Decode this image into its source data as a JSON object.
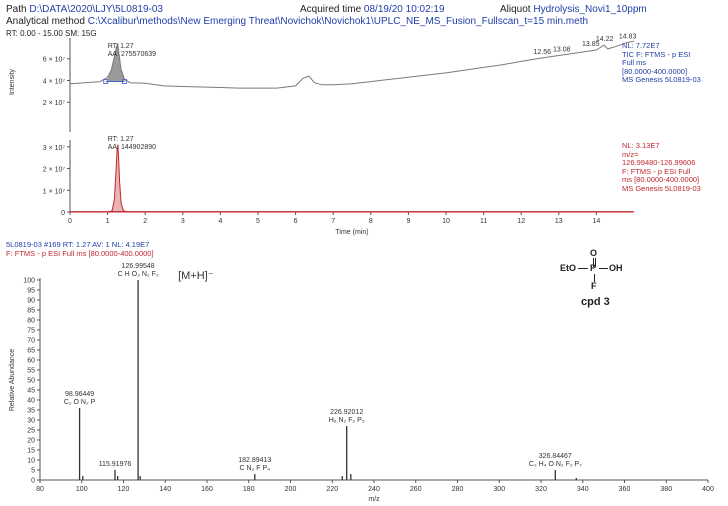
{
  "header": {
    "path_label": "Path",
    "path_value": "D:\\DATA\\2020\\LJY\\5L0819-03",
    "acq_label": "Acquired time",
    "acq_value": "08/19/20 10:02:19",
    "aliquot_label": "Aliquot",
    "aliquot_value": "Hydrolysis_Novi1_10ppm",
    "method_label": "Analytical method",
    "method_value": "C:\\Xcalibur\\methods\\New Emerging Threat\\Novichok\\Novichok1\\UPLC_NE_MS_Fusion_Fullscan_t=15 min.meth",
    "rt_range": "RT: 0.00 - 15.00  SM: 15G"
  },
  "chart_data": [
    {
      "type": "line",
      "panel": "TIC",
      "ylabel": "Intensity",
      "xlim": [
        0,
        15
      ],
      "ylim": [
        0,
        77200000.0
      ],
      "yticks": [
        "2 × 10⁷",
        "4 × 10⁷",
        "6 × 10⁷"
      ],
      "ytick_values": [
        20000000.0,
        40000000.0,
        60000000.0
      ],
      "peak_label": {
        "rt": "RT: 1.27",
        "aa": "AA: 275570639"
      },
      "rt_labels": [
        "12.56",
        "13.08",
        "13.85",
        "14.22",
        "14.83"
      ],
      "rt_label_values": [
        12.56,
        13.08,
        13.85,
        14.22,
        14.83
      ],
      "side_info": [
        "NL: 7.72E7",
        "TIC F: FTMS - p ESI",
        "Full ms",
        "[80.0000-400.0000]",
        "MS  Genesis 5L0819-03"
      ],
      "series": [
        {
          "color": "#7a7a7a",
          "x": [
            0.0,
            0.4,
            0.8,
            1.0,
            1.1,
            1.18,
            1.24,
            1.27,
            1.3,
            1.36,
            1.45,
            1.6,
            2.0,
            2.5,
            3.0,
            3.5,
            4.0,
            4.5,
            5.0,
            5.5,
            6.0,
            6.2,
            6.35,
            6.5,
            6.7,
            7.0,
            7.5,
            8.0,
            8.5,
            9.0,
            9.5,
            10.0,
            10.5,
            11.0,
            11.5,
            12.0,
            12.5,
            13.0,
            13.5,
            14.0,
            14.2,
            14.3,
            14.5,
            14.83,
            15.0
          ],
          "y": [
            37000000.0,
            38000000.0,
            39000000.0,
            43000000.0,
            50000000.0,
            62000000.0,
            71000000.0,
            73500000.0,
            65000000.0,
            50000000.0,
            41000000.0,
            38000000.0,
            37500000.0,
            35000000.0,
            34500000.0,
            34000000.0,
            33500000.0,
            33000000.0,
            33000000.0,
            33000000.0,
            35000000.0,
            42000000.0,
            44000000.0,
            38000000.0,
            36000000.0,
            36000000.0,
            37000000.0,
            39000000.0,
            41000000.0,
            43000000.0,
            45000000.0,
            47000000.0,
            49500000.0,
            52000000.0,
            54500000.0,
            57500000.0,
            60500000.0,
            63000000.0,
            65500000.0,
            68000000.0,
            72500000.0,
            69000000.0,
            71000000.0,
            75000000.0,
            76000000.0
          ]
        }
      ]
    },
    {
      "type": "line",
      "panel": "XIC",
      "xlabel": "Time (min)",
      "xlim": [
        0,
        15
      ],
      "xticks": [
        "0",
        "1",
        "2",
        "3",
        "4",
        "5",
        "6",
        "7",
        "8",
        "9",
        "10",
        "11",
        "12",
        "13",
        "14"
      ],
      "ylim": [
        0,
        31300000.0
      ],
      "yticks": [
        "0",
        "1 × 10⁷",
        "2 × 10⁷",
        "3 × 10⁷"
      ],
      "ytick_values": [
        0,
        10000000.0,
        20000000.0,
        30000000.0
      ],
      "peak_label": {
        "rt": "RT: 1.27",
        "aa": "AA: 144902890"
      },
      "side_info": [
        "NL: 3.13E7",
        "m/z=",
        "126.99480-126.99606",
        "F: FTMS - p ESI Full",
        "ms [80.0000-400.0000]",
        "MS  Genesis 5L0819-03"
      ],
      "series": [
        {
          "color": "#c0282d",
          "x": [
            0.0,
            1.0,
            1.12,
            1.18,
            1.22,
            1.25,
            1.27,
            1.29,
            1.32,
            1.36,
            1.42,
            1.55,
            15.0
          ],
          "y": [
            0,
            0,
            500000.0,
            6000000.0,
            18000000.0,
            28000000.0,
            31000000.0,
            26000000.0,
            14000000.0,
            4000000.0,
            500000.0,
            0,
            0
          ]
        }
      ]
    },
    {
      "type": "bar",
      "panel": "spectrum",
      "title_scan": "5L0819-03 #169  RT: 1.27  AV: 1  NL: 4.19E7",
      "title_filter": "F: FTMS - p ESI Full ms [80.0000-400.0000]",
      "xlabel": "m/z",
      "ylabel": "Relative Abundance",
      "xlim": [
        80,
        400
      ],
      "ylim": [
        0,
        100
      ],
      "xticks": [
        "80",
        "100",
        "120",
        "140",
        "160",
        "180",
        "200",
        "220",
        "240",
        "260",
        "280",
        "300",
        "320",
        "340",
        "360",
        "380",
        "400"
      ],
      "yticks": [
        "0",
        "5",
        "10",
        "15",
        "20",
        "25",
        "30",
        "35",
        "40",
        "45",
        "50",
        "55",
        "60",
        "65",
        "70",
        "75",
        "80",
        "85",
        "90",
        "95",
        "100"
      ],
      "peaks": [
        {
          "mz": 98.96449,
          "abundance": 36,
          "mz_label": "98.96449",
          "formula": "C₂ O N₂ P"
        },
        {
          "mz": 100.5,
          "abundance": 2
        },
        {
          "mz": 115.91976,
          "abundance": 5,
          "mz_label": "115.91976"
        },
        {
          "mz": 117.2,
          "abundance": 2
        },
        {
          "mz": 126.99548,
          "abundance": 100,
          "mz_label": "126.99548",
          "formula": "C H O₃ N₂ F₂"
        },
        {
          "mz": 128.0,
          "abundance": 2
        },
        {
          "mz": 182.89413,
          "abundance": 3,
          "mz_label": "182.89413",
          "formula": "C N₂ F P₄"
        },
        {
          "mz": 224.8,
          "abundance": 2
        },
        {
          "mz": 226.92012,
          "abundance": 27,
          "mz_label": "226.92012",
          "formula": "H₆ N₂ F₂ P₅"
        },
        {
          "mz": 228.9,
          "abundance": 3
        },
        {
          "mz": 326.84467,
          "abundance": 5,
          "mz_label": "326.84467",
          "formula": "C₂ H₄ O N₂ F₂ P₇"
        },
        {
          "mz": 336.9,
          "abundance": 1
        }
      ],
      "annotation": "[M+H]⁻"
    }
  ],
  "structure": {
    "o_top": "O",
    "eto": "EtO",
    "p": "P",
    "oh": "OH",
    "f": "F",
    "label": "cpd 3"
  },
  "colors": {
    "gray_line": "#7a7a7a",
    "red": "#c0282d",
    "blue": "#1f3ea8",
    "bar": "#333333"
  }
}
